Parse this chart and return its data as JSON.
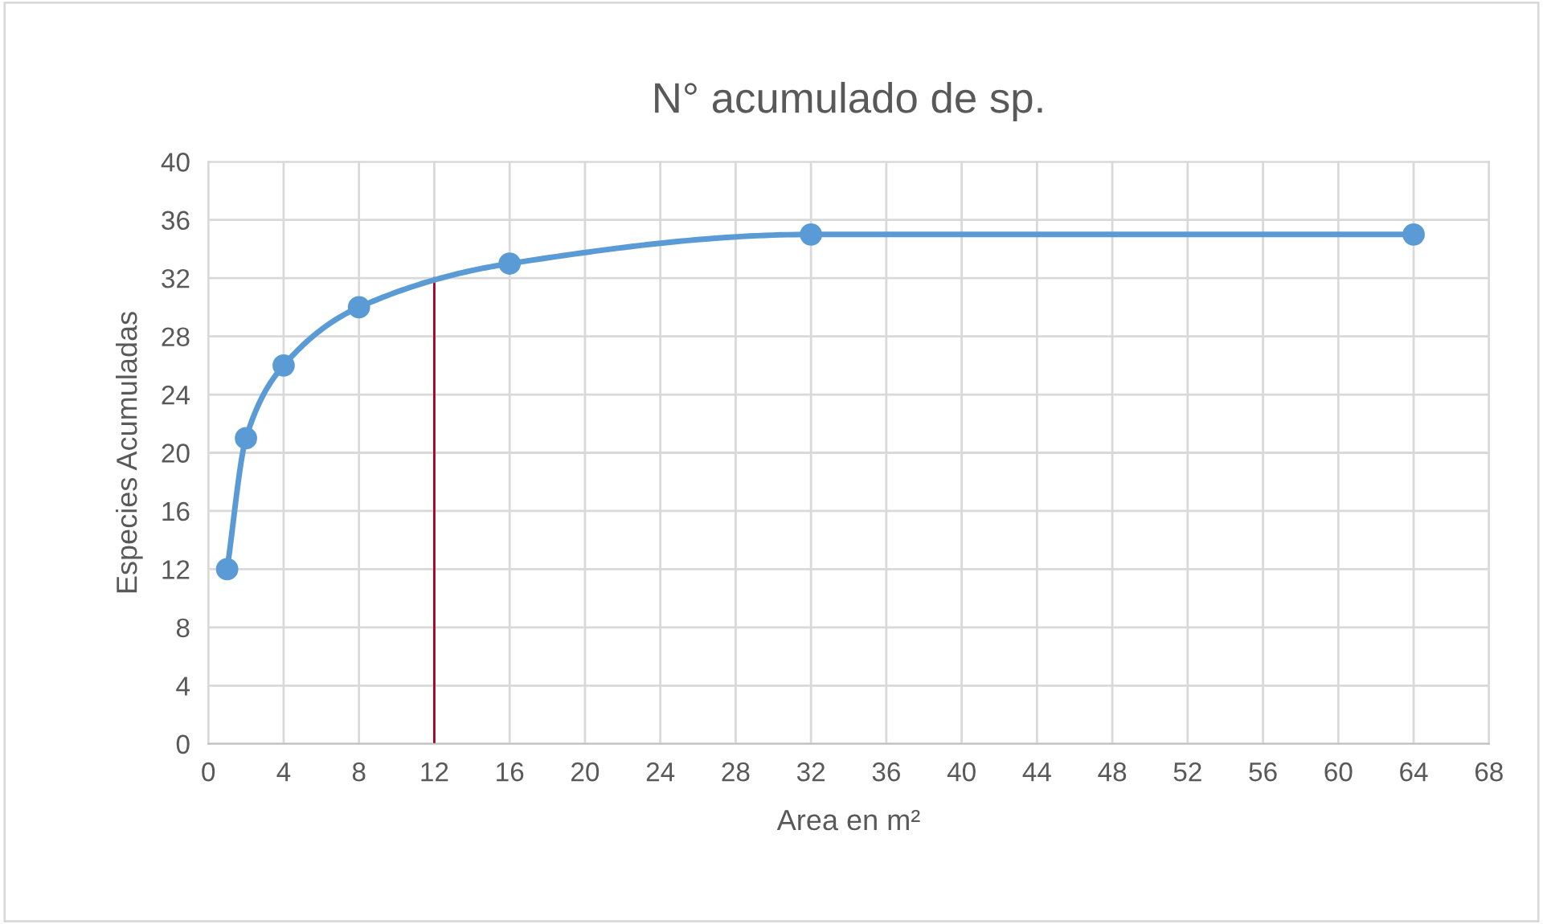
{
  "chart_data": {
    "type": "line",
    "title": "N° acumulado de sp.",
    "xlabel": "Area en m²",
    "ylabel": "Especies Acumuladas",
    "series": [
      {
        "color": "#5b9bd5",
        "x": [
          1,
          2,
          4,
          8,
          16,
          32,
          64
        ],
        "values": [
          12,
          21,
          26,
          30,
          33,
          35,
          35
        ],
        "marker": "circle"
      },
      {
        "type": "line",
        "color": "#a50021",
        "x": [
          12,
          12
        ],
        "values": [
          0,
          32
        ],
        "marker": "none"
      }
    ],
    "xlim": [
      0,
      68
    ],
    "xticks": [
      0,
      4,
      8,
      12,
      16,
      20,
      24,
      28,
      32,
      36,
      40,
      44,
      48,
      52,
      56,
      60,
      64,
      68
    ],
    "ylim": [
      0,
      40
    ],
    "yticks": [
      0,
      4,
      8,
      12,
      16,
      20,
      24,
      28,
      32,
      36,
      40
    ],
    "grid": true,
    "legend": false,
    "line_style": "solid"
  }
}
